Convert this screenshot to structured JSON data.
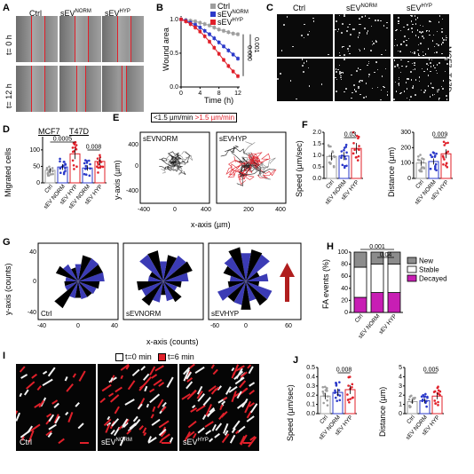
{
  "panels": {
    "A": {
      "label": "A",
      "columns": [
        "Ctrl",
        "sEV",
        "sEV"
      ],
      "col_sup": [
        "",
        "NORM",
        "HYP"
      ],
      "rows": [
        "t= 0 h",
        "t= 12 h"
      ]
    },
    "B": {
      "label": "B",
      "ylabel": "Wound area",
      "xlabel": "Time (h)",
      "xticks": [
        "0",
        "4",
        "8",
        "12"
      ],
      "yticks": [
        "0.0",
        "0.5",
        "1.0"
      ],
      "legend": [
        {
          "name": "Ctrl",
          "sup": "",
          "color": "#9e9e9e"
        },
        {
          "name": "sEV",
          "sup": "NORM",
          "color": "#2b39c9"
        },
        {
          "name": "sEV",
          "sup": "HYP",
          "color": "#e0202a"
        }
      ],
      "pvalues": [
        "0.000",
        "0.001"
      ]
    },
    "C": {
      "label": "C",
      "columns": [
        "Ctrl",
        "sEV",
        "sEV"
      ],
      "col_sup": [
        "",
        "NORM",
        "HYP"
      ],
      "rows": [
        "MCF7",
        "T47D"
      ]
    },
    "D": {
      "label": "D",
      "ylabel": "Migrated cells",
      "groups": [
        "MCF7",
        "T47D"
      ],
      "yticks": [
        "0",
        "50",
        "100"
      ],
      "xticklabels": [
        {
          "name": "Ctrl",
          "sup": ""
        },
        {
          "name": "sEV",
          "sup": "NORM"
        },
        {
          "name": "sEV",
          "sup": "HYP"
        },
        {
          "name": "sEV",
          "sup": "NORM"
        },
        {
          "name": "sEV",
          "sup": "HYP"
        }
      ],
      "pvalues": [
        "0.0005",
        "0.008"
      ]
    },
    "E": {
      "label": "E",
      "legend_slow": "<1.5 µm/min",
      "legend_fast": ">1.5 µm/min",
      "ylabel": "y-axis (µm)",
      "xlabel": "x-axis (µm)",
      "yticks": [
        "400",
        "200",
        "0",
        "-200",
        "-400"
      ],
      "xticks": [
        "-400",
        "0",
        "400",
        "-200",
        "0",
        "200",
        "400"
      ],
      "plots": [
        {
          "name": "sEV",
          "sup": "NORM"
        },
        {
          "name": "sEV",
          "sup": "HYP"
        }
      ]
    },
    "F": {
      "label": "F",
      "ylabel_left": "Speed (µm/sec)",
      "ylabel_right": "Distance (µm)",
      "yticks_left": [
        "0.0",
        "0.5",
        "1.0",
        "1.5",
        "2.0"
      ],
      "yticks_right": [
        "0",
        "100",
        "200",
        "300"
      ],
      "pvalue_left": "0.03",
      "pvalue_right": "0.009",
      "xticklabels": [
        {
          "name": "Ctrl",
          "sup": ""
        },
        {
          "name": "sEV",
          "sup": "NORM"
        },
        {
          "name": "sEV",
          "sup": "HYP"
        }
      ]
    },
    "G": {
      "label": "G",
      "ylabel": "y-axis (counts)",
      "xlabel": "x-axis (counts)",
      "yticks": [
        "40",
        "20",
        "0",
        "-20",
        "-40"
      ],
      "yticks_right": [
        "60",
        "40",
        "20",
        "0",
        "-20",
        "-40",
        "-60"
      ],
      "xticks": [
        "-40",
        "0",
        "40",
        "-40",
        "0",
        "40",
        "-60",
        "0",
        "60"
      ],
      "plots": [
        {
          "name": "Ctrl",
          "sup": ""
        },
        {
          "name": "sEV",
          "sup": "NORM"
        },
        {
          "name": "sEV",
          "sup": "HYP"
        }
      ]
    },
    "H": {
      "label": "H",
      "ylabel": "FA events (%)",
      "yticks": [
        "0",
        "20",
        "40",
        "60",
        "80",
        "100"
      ],
      "legend": [
        {
          "name": "New",
          "color": "#8c8c8c"
        },
        {
          "name": "Stable",
          "color": "#ffffff"
        },
        {
          "name": "Decayed",
          "color": "#c81eb4"
        }
      ],
      "pvalues": [
        "0.001",
        "0.04"
      ],
      "xticklabels": [
        {
          "name": "Ctrl",
          "sup": ""
        },
        {
          "name": "sEV",
          "sup": "NORM"
        },
        {
          "name": "sEV",
          "sup": "HYP"
        }
      ]
    },
    "I": {
      "label": "I",
      "legend": [
        {
          "name": "t=0 min",
          "color": "#ffffff"
        },
        {
          "name": "t=6 min",
          "color": "#e0202a"
        }
      ],
      "panels": [
        {
          "name": "Ctrl",
          "sup": ""
        },
        {
          "name": "sEV",
          "sup": "NORM"
        },
        {
          "name": "sEV",
          "sup": "HYP"
        }
      ]
    },
    "J": {
      "label": "J",
      "ylabel_left": "Speed (µm/sec)",
      "ylabel_right": "Distance (µm)",
      "yticks_left": [
        "0.0",
        "0.1",
        "0.2",
        "0.3",
        "0.4",
        "0.5"
      ],
      "yticks_right": [
        "0",
        "1",
        "2",
        "3",
        "4",
        "5"
      ],
      "pvalue_left": "0.008",
      "pvalue_right": "0.005",
      "xticklabels": [
        {
          "name": "Ctrl",
          "sup": ""
        },
        {
          "name": "sEV",
          "sup": "NORM"
        },
        {
          "name": "sEV",
          "sup": "HYP"
        }
      ]
    }
  },
  "chart_data": [
    {
      "panel": "B",
      "type": "line",
      "x": [
        0,
        1,
        2,
        3,
        4,
        5,
        6,
        7,
        8,
        9,
        10,
        11,
        12
      ],
      "series": [
        {
          "name": "Ctrl",
          "values": [
            1.0,
            0.99,
            0.98,
            0.97,
            0.95,
            0.93,
            0.91,
            0.88,
            0.85,
            0.83,
            0.81,
            0.79,
            0.78
          ]
        },
        {
          "name": "sEV NORM",
          "values": [
            1.0,
            0.98,
            0.95,
            0.92,
            0.88,
            0.83,
            0.78,
            0.72,
            0.66,
            0.6,
            0.54,
            0.48,
            0.42
          ]
        },
        {
          "name": "sEV HYP",
          "values": [
            1.0,
            0.97,
            0.93,
            0.88,
            0.82,
            0.75,
            0.67,
            0.58,
            0.49,
            0.4,
            0.31,
            0.23,
            0.16
          ]
        }
      ],
      "xlim": [
        0,
        12
      ],
      "ylim": [
        0,
        1.05
      ]
    },
    {
      "panel": "D",
      "type": "bar",
      "categories": [
        "Ctrl",
        "sEV NORM",
        "sEV HYP",
        "sEV NORM",
        "sEV HYP"
      ],
      "values": [
        38,
        48,
        88,
        45,
        65
      ],
      "ylim": [
        0,
        140
      ]
    },
    {
      "panel": "F-speed",
      "type": "bar",
      "categories": [
        "Ctrl",
        "sEV NORM",
        "sEV HYP"
      ],
      "values": [
        0.95,
        0.97,
        1.3
      ],
      "ylim": [
        0,
        2.0
      ]
    },
    {
      "panel": "F-distance",
      "type": "bar",
      "categories": [
        "Ctrl",
        "sEV NORM",
        "sEV HYP"
      ],
      "values": [
        100,
        110,
        160
      ],
      "ylim": [
        0,
        300
      ]
    },
    {
      "panel": "H",
      "type": "bar",
      "categories": [
        "Ctrl",
        "sEV NORM",
        "sEV HYP"
      ],
      "series": [
        {
          "name": "Decayed",
          "values": [
            25,
            33,
            33
          ]
        },
        {
          "name": "Stable",
          "values": [
            50,
            47,
            47
          ]
        },
        {
          "name": "New",
          "values": [
            25,
            20,
            20
          ]
        }
      ],
      "ylim": [
        0,
        100
      ]
    },
    {
      "panel": "J-speed",
      "type": "bar",
      "categories": [
        "Ctrl",
        "sEV NORM",
        "sEV HYP"
      ],
      "values": [
        0.19,
        0.23,
        0.26
      ],
      "ylim": [
        0,
        0.5
      ]
    },
    {
      "panel": "J-distance",
      "type": "bar",
      "categories": [
        "Ctrl",
        "sEV NORM",
        "sEV HYP"
      ],
      "values": [
        1.3,
        1.4,
        1.9
      ],
      "ylim": [
        0,
        5
      ]
    }
  ]
}
